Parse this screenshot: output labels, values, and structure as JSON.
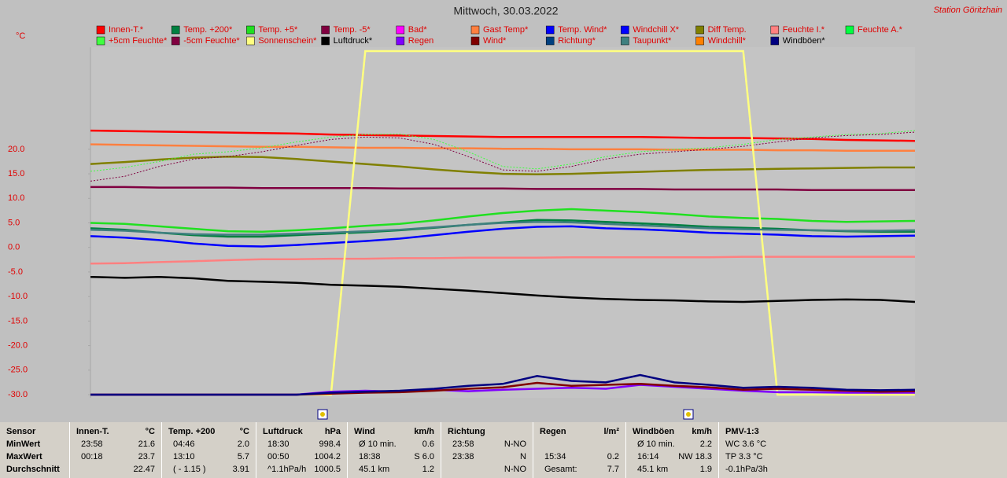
{
  "chart_data": {
    "type": "line",
    "title": "Mittwoch, 30.03.2022",
    "station": "Station Göritzhain",
    "y_unit": "°C",
    "categories": [
      null,
      null,
      null,
      null,
      null,
      null,
      null,
      null,
      null,
      null,
      null,
      null,
      null,
      null,
      null,
      null,
      null,
      null,
      null,
      null,
      null,
      null,
      null,
      null,
      null
    ],
    "ylim": [
      -30,
      40
    ],
    "yticks": [
      {
        "value": 20,
        "label": "20.0"
      },
      {
        "value": 15,
        "label": "15.0"
      },
      {
        "value": 10,
        "label": "10.0"
      },
      {
        "value": 5,
        "label": "5.0"
      },
      {
        "value": 0,
        "label": "0.0"
      },
      {
        "value": -5,
        "label": "-5.0"
      },
      {
        "value": -10,
        "label": "-10.0"
      },
      {
        "value": -15,
        "label": "-15.0"
      },
      {
        "value": -20,
        "label": "-20.0"
      },
      {
        "value": -25,
        "label": "-25.0"
      },
      {
        "value": -30,
        "label": "-30.0"
      }
    ],
    "series": [
      {
        "name": "Innen-T.*",
        "color": "#ff0000",
        "values": [
          23.8,
          23.7,
          23.6,
          23.5,
          23.4,
          23.3,
          23.2,
          23.0,
          22.9,
          22.8,
          22.7,
          22.6,
          22.5,
          22.5,
          22.5,
          22.5,
          22.5,
          22.4,
          22.3,
          22.3,
          22.2,
          22.1,
          21.9,
          21.8,
          21.7
        ]
      },
      {
        "name": "Temp. +200*",
        "color": "#008040",
        "values": [
          3.9,
          3.6,
          3.0,
          2.5,
          2.2,
          2.2,
          2.5,
          2.8,
          3.1,
          3.5,
          4.0,
          4.6,
          5.1,
          5.6,
          5.5,
          5.2,
          4.9,
          4.6,
          4.2,
          4.0,
          3.8,
          3.5,
          3.3,
          3.2,
          3.2
        ]
      },
      {
        "name": "Temp. +5*",
        "color": "#20e020",
        "values": [
          5.0,
          4.8,
          4.3,
          3.8,
          3.3,
          3.2,
          3.5,
          3.9,
          4.4,
          4.8,
          5.5,
          6.3,
          7.0,
          7.5,
          7.8,
          7.5,
          7.2,
          6.8,
          6.3,
          6.0,
          5.8,
          5.4,
          5.2,
          5.3,
          5.4
        ]
      },
      {
        "name": "Temp. -5*",
        "color": "#800040",
        "values": [
          12.3,
          12.3,
          12.2,
          12.2,
          12.2,
          12.1,
          12.1,
          12.1,
          12.1,
          12.0,
          12.0,
          12.0,
          12.0,
          11.9,
          11.9,
          11.9,
          11.9,
          11.8,
          11.8,
          11.8,
          11.8,
          11.7,
          11.7,
          11.7,
          11.7
        ]
      },
      {
        "name": "Bad*",
        "color": "#ff00ff",
        "values": [
          null,
          null,
          null,
          null,
          null,
          null,
          null,
          null,
          null,
          null,
          null,
          null,
          null,
          null,
          null,
          null,
          null,
          null,
          null,
          null,
          null,
          null,
          null,
          null,
          null
        ]
      },
      {
        "name": "Gast Temp*",
        "color": "#ff8040",
        "values": [
          21.0,
          20.9,
          20.8,
          20.7,
          20.6,
          20.5,
          20.5,
          20.4,
          20.3,
          20.3,
          20.2,
          20.2,
          20.1,
          20.1,
          20.0,
          20.0,
          20.0,
          19.9,
          19.9,
          19.9,
          19.8,
          19.8,
          19.7,
          19.7,
          19.7
        ]
      },
      {
        "name": "Temp. Wind*",
        "color": "#0000ff",
        "values": [
          2.3,
          2.0,
          1.5,
          0.8,
          0.3,
          0.2,
          0.5,
          0.9,
          1.3,
          1.8,
          2.5,
          3.2,
          3.8,
          4.2,
          4.3,
          3.9,
          3.7,
          3.4,
          3.0,
          2.8,
          2.6,
          2.3,
          2.2,
          2.3,
          2.4
        ]
      },
      {
        "name": "Windchill X*",
        "color": "#0000ff",
        "values": [
          null,
          null,
          null,
          null,
          null,
          null,
          null,
          null,
          null,
          null,
          null,
          null,
          null,
          null,
          null,
          null,
          null,
          null,
          null,
          null,
          null,
          null,
          null,
          null,
          null
        ]
      },
      {
        "name": "Diff Temp.",
        "color": "#808000",
        "values": [
          17.0,
          17.4,
          17.9,
          18.3,
          18.5,
          18.4,
          18.0,
          17.5,
          17.0,
          16.5,
          15.9,
          15.4,
          15.0,
          14.9,
          15.0,
          15.2,
          15.4,
          15.6,
          15.8,
          15.9,
          16.0,
          16.1,
          16.2,
          16.3,
          16.3
        ]
      },
      {
        "name": "Feuchte I.*",
        "color": "#ff8080",
        "values": [
          -3.3,
          -3.2,
          -3.0,
          -2.8,
          -2.6,
          -2.4,
          -2.4,
          -2.3,
          -2.3,
          -2.2,
          -2.2,
          -2.1,
          -2.1,
          -2.1,
          -2.0,
          -2.0,
          -2.0,
          -2.0,
          -2.0,
          -1.9,
          -1.9,
          -1.9,
          -1.9,
          -1.9,
          -1.9
        ]
      },
      {
        "name": "Feuchte A.*",
        "color": "#00ff40",
        "values": [
          null,
          null,
          null,
          null,
          null,
          null,
          null,
          null,
          null,
          null,
          null,
          null,
          null,
          null,
          null,
          null,
          null,
          null,
          null,
          null,
          null,
          null,
          null,
          null,
          null
        ]
      },
      {
        "name": "+5cm Feuchte*",
        "color": "#40ff40",
        "dashed": true,
        "values": [
          15.5,
          16.3,
          17.5,
          19.0,
          19.5,
          20.3,
          21.5,
          22.5,
          23.0,
          23.1,
          22.0,
          19.5,
          16.5,
          16.0,
          17.0,
          18.5,
          19.5,
          20.0,
          20.3,
          21.0,
          22.0,
          22.5,
          23.0,
          23.2,
          23.8
        ]
      },
      {
        "name": "-5cm Feuchte*",
        "color": "#800040",
        "dashed": true,
        "values": [
          13.5,
          14.5,
          16.5,
          18.0,
          18.5,
          19.5,
          20.8,
          22.0,
          22.5,
          22.3,
          21.0,
          18.5,
          15.8,
          15.5,
          16.5,
          18.0,
          19.0,
          19.5,
          20.0,
          20.6,
          21.5,
          22.3,
          22.8,
          23.0,
          23.5
        ]
      },
      {
        "name": "Sonnenschein*",
        "color": "#ffff80",
        "values": [
          -30,
          -30,
          -30,
          -30,
          -30,
          -30,
          -30,
          -30,
          40,
          40,
          40,
          40,
          40,
          40,
          40,
          40,
          40,
          40,
          40,
          40,
          -30,
          -30,
          -30,
          -30,
          -30
        ]
      },
      {
        "name": "Luftdruck*",
        "color": "#000000",
        "values": [
          -6.0,
          -6.2,
          -6.0,
          -6.3,
          -6.8,
          -7.0,
          -7.2,
          -7.6,
          -7.8,
          -8.0,
          -8.4,
          -8.8,
          -9.3,
          -9.8,
          -10.2,
          -10.5,
          -10.7,
          -10.8,
          -11.0,
          -11.1,
          -10.9,
          -10.7,
          -10.6,
          -10.7,
          -11.1
        ]
      },
      {
        "name": "Regen",
        "color": "#8000ff",
        "values": [
          -30,
          -30,
          -30,
          -30,
          -30,
          -30,
          -30,
          -29.4,
          -29.2,
          -29.4,
          -29,
          -29.3,
          -29,
          -28.8,
          -28.6,
          -28.8,
          -28,
          -28.4,
          -28.8,
          -29.2,
          -29.5,
          -29.5,
          -29.6,
          -29.6,
          -29.6
        ]
      },
      {
        "name": "Wind*",
        "color": "#800000",
        "values": [
          -30,
          -30,
          -30,
          -30,
          -30,
          -30,
          -30,
          -29.8,
          -29.6,
          -29.5,
          -29.2,
          -28.8,
          -28.5,
          -27.6,
          -28.2,
          -28.0,
          -27.8,
          -28.2,
          -28.5,
          -29,
          -28.8,
          -29,
          -29.2,
          -29.4,
          -29.3
        ]
      },
      {
        "name": "Richtung*",
        "color": "#004080",
        "values": [
          null,
          null,
          null,
          null,
          null,
          null,
          null,
          null,
          null,
          null,
          null,
          null,
          null,
          null,
          null,
          null,
          null,
          null,
          null,
          null,
          null,
          null,
          null,
          null,
          null
        ]
      },
      {
        "name": "Taupunkt*",
        "color": "#408080",
        "values": [
          3.6,
          3.4,
          3.0,
          2.7,
          2.6,
          2.6,
          2.8,
          3.0,
          3.3,
          3.6,
          4.1,
          4.6,
          5.0,
          5.2,
          5.1,
          4.8,
          4.5,
          4.2,
          3.9,
          3.7,
          3.6,
          3.5,
          3.4,
          3.4,
          3.5
        ]
      },
      {
        "name": "Windchill*",
        "color": "#ff8000",
        "values": [
          null,
          null,
          null,
          null,
          null,
          null,
          null,
          null,
          null,
          null,
          null,
          null,
          null,
          null,
          null,
          null,
          null,
          null,
          null,
          null,
          null,
          null,
          null,
          null,
          null
        ]
      },
      {
        "name": "Windböen*",
        "color": "#000080",
        "values": [
          -30,
          -30,
          -30,
          -30,
          -30,
          -30,
          -30,
          -29.6,
          -29.4,
          -29.2,
          -28.8,
          -28.2,
          -27.8,
          -26.2,
          -27.2,
          -27.5,
          -26.0,
          -27.5,
          -28,
          -28.6,
          -28.4,
          -28.6,
          -29,
          -29.1,
          -29.0
        ]
      }
    ]
  },
  "table": {
    "panels": [
      {
        "head": [
          "Sensor"
        ],
        "rows": [
          [
            "MinWert"
          ],
          [
            "MaxWert"
          ],
          [
            "Durchschnitt"
          ]
        ]
      },
      {
        "head": [
          "Innen-T.",
          "°C"
        ],
        "rows": [
          [
            "23:58",
            "21.6"
          ],
          [
            "00:18",
            "23.7"
          ],
          [
            "22.47"
          ]
        ]
      },
      {
        "head": [
          "Temp. +200",
          "°C"
        ],
        "rows": [
          [
            "04:46",
            "2.0"
          ],
          [
            "13:10",
            "5.7"
          ],
          [
            "( - 1.15 )",
            "3.91"
          ]
        ]
      },
      {
        "head": [
          "Luftdruck",
          "hPa"
        ],
        "rows": [
          [
            "18:30",
            "998.4"
          ],
          [
            "00:50",
            "1004.2"
          ],
          [
            "^1.1hPa/h",
            "1000.5"
          ]
        ]
      },
      {
        "head": [
          "Wind",
          "km/h"
        ],
        "rows": [
          [
            "Ø 10 min.",
            "0.6"
          ],
          [
            "18:38",
            "S 6.0"
          ],
          [
            "45.1 km",
            "1.2"
          ]
        ]
      },
      {
        "head": [
          "Richtung"
        ],
        "rows": [
          [
            "23:58",
            "N-NO"
          ],
          [
            "23:38",
            "N"
          ],
          [
            "N-NO"
          ]
        ]
      },
      {
        "head": [
          "Regen",
          "l/m²"
        ],
        "rows": [
          [],
          [
            "15:34",
            "0.2"
          ],
          [
            "Gesamt:",
            "7.7"
          ]
        ]
      },
      {
        "head": [
          "Windböen",
          "km/h"
        ],
        "rows": [
          [
            "Ø 10 min.",
            "2.2"
          ],
          [
            "16:14",
            "NW 18.3"
          ],
          [
            "45.1 km",
            "1.9"
          ]
        ]
      },
      {
        "head": [
          "PMV-1:3"
        ],
        "rows": [
          [
            "WC 3.6 °C"
          ],
          [
            "TP 3.3 °C"
          ],
          [
            "-0.1hPa/3h"
          ]
        ]
      }
    ]
  }
}
